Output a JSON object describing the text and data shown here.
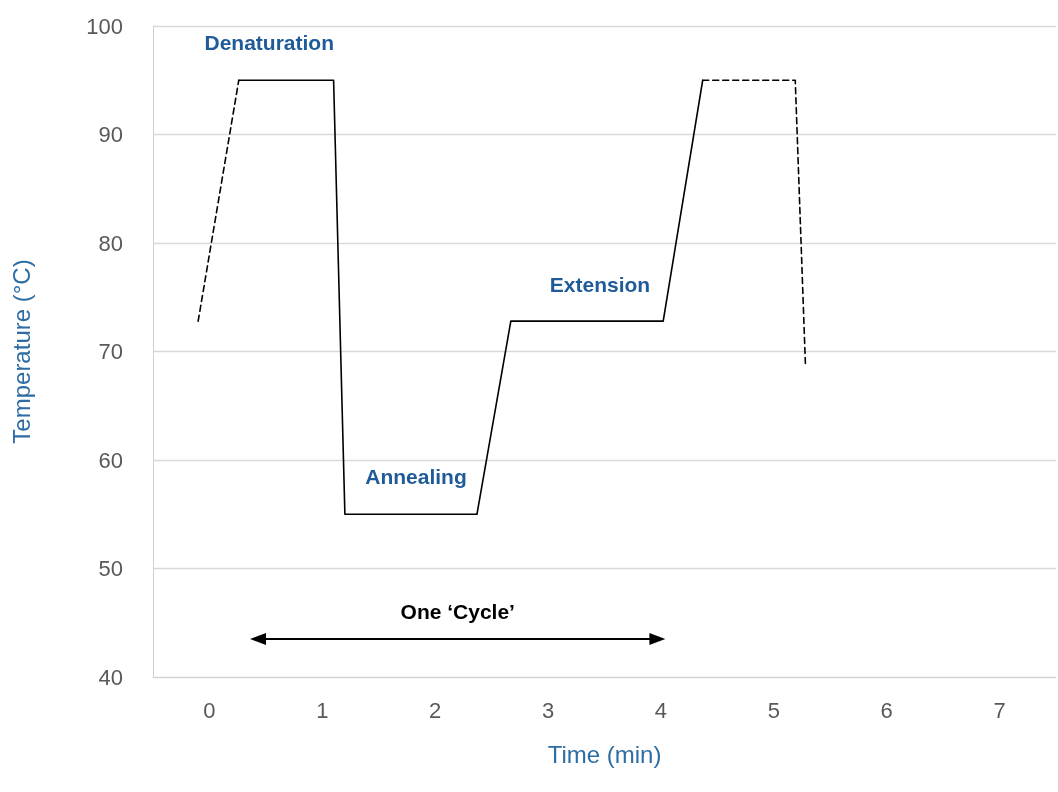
{
  "chart_data": {
    "type": "line",
    "xlabel": "Time (min)",
    "ylabel": "Temperature (°C)",
    "xlim": [
      -0.5,
      7.5
    ],
    "xticks": [
      0,
      1,
      2,
      3,
      4,
      5,
      6,
      7
    ],
    "ylim": [
      40,
      100
    ],
    "yticks": [
      40,
      50,
      60,
      70,
      80,
      90,
      100
    ],
    "grid": "y",
    "marker": "none",
    "series": [
      {
        "color": "#000000",
        "line_style": "dashed",
        "x": [
          -0.1,
          0.26
        ],
        "values": [
          72.8,
          95
        ]
      },
      {
        "color": "#000000",
        "line_style": "solid",
        "x": [
          0.26,
          1.1,
          1.2,
          2.37,
          2.67,
          4.02,
          4.37
        ],
        "values": [
          95,
          95,
          55,
          55,
          72.8,
          72.8,
          95
        ]
      },
      {
        "color": "#000000",
        "line_style": "dashed",
        "x": [
          4.37,
          5.19,
          5.28
        ],
        "values": [
          95,
          95,
          68.8
        ]
      }
    ],
    "annotations": [
      "Denaturation",
      "Annealing",
      "Extension",
      "One ‘Cycle’"
    ]
  }
}
